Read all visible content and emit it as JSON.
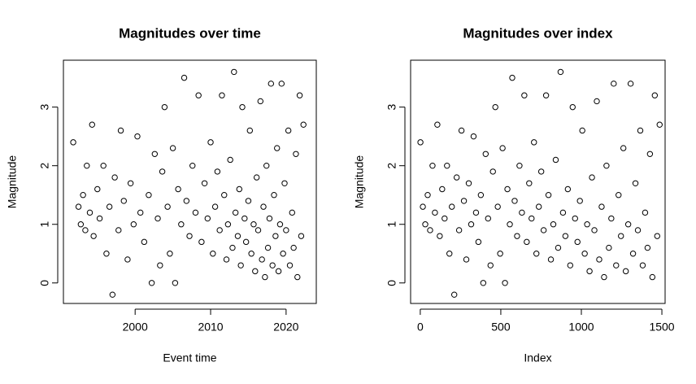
{
  "chart_data": [
    {
      "type": "scatter",
      "title": "Magnitudes over time",
      "x_label": "Event time",
      "y_label": "Magnitude",
      "color": "#000000",
      "x": [
        1991.8,
        1992.5,
        1992.8,
        1993.1,
        1993.4,
        1993.6,
        1994.0,
        1994.3,
        1994.5,
        1995.0,
        1995.3,
        1995.8,
        1996.2,
        1996.6,
        1997.0,
        1997.3,
        1997.8,
        1998.1,
        1998.5,
        1999.0,
        1999.4,
        1999.8,
        2000.3,
        2000.7,
        2001.2,
        2001.8,
        2002.2,
        2002.6,
        2003.0,
        2003.3,
        2003.6,
        2003.9,
        2004.3,
        2004.6,
        2005.0,
        2005.3,
        2005.7,
        2006.1,
        2006.5,
        2006.8,
        2007.2,
        2007.6,
        2008.0,
        2008.4,
        2008.8,
        2009.2,
        2009.6,
        2010.0,
        2010.3,
        2010.6,
        2010.9,
        2011.2,
        2011.5,
        2011.8,
        2012.1,
        2012.3,
        2012.6,
        2012.9,
        2013.1,
        2013.3,
        2013.6,
        2013.8,
        2014.0,
        2014.2,
        2014.5,
        2014.7,
        2015.0,
        2015.2,
        2015.4,
        2015.7,
        2015.9,
        2016.1,
        2016.3,
        2016.6,
        2016.8,
        2017.0,
        2017.2,
        2017.4,
        2017.6,
        2017.8,
        2018.0,
        2018.2,
        2018.4,
        2018.6,
        2018.8,
        2019.0,
        2019.2,
        2019.4,
        2019.6,
        2019.8,
        2020.0,
        2020.3,
        2020.5,
        2020.8,
        2021.0,
        2021.3,
        2021.5,
        2021.8,
        2022.0,
        2022.3
      ],
      "values": [
        2.4,
        1.3,
        1.0,
        1.5,
        0.9,
        2.0,
        1.2,
        2.7,
        0.8,
        1.6,
        1.1,
        2.0,
        0.5,
        1.3,
        -0.2,
        1.8,
        0.9,
        2.6,
        1.4,
        0.4,
        1.7,
        1.0,
        2.5,
        1.2,
        0.7,
        1.5,
        0.0,
        2.2,
        1.1,
        0.3,
        1.9,
        3.0,
        1.3,
        0.5,
        2.3,
        0.0,
        1.6,
        1.0,
        3.5,
        1.4,
        0.8,
        2.0,
        1.2,
        3.2,
        0.7,
        1.7,
        1.1,
        2.4,
        0.5,
        1.3,
        1.9,
        0.9,
        3.2,
        1.5,
        0.4,
        1.0,
        2.1,
        0.6,
        3.6,
        1.2,
        0.8,
        1.6,
        0.3,
        3.0,
        1.1,
        0.7,
        1.4,
        2.6,
        0.5,
        1.0,
        0.2,
        1.8,
        0.9,
        3.1,
        0.4,
        1.3,
        0.1,
        2.0,
        0.6,
        1.1,
        3.4,
        0.3,
        1.5,
        0.8,
        2.3,
        0.2,
        1.0,
        3.4,
        0.5,
        1.7,
        0.9,
        2.6,
        0.3,
        1.2,
        0.6,
        2.2,
        0.1,
        3.2,
        0.8,
        2.7
      ],
      "xlim": [
        1990.5,
        2024
      ],
      "ylim": [
        -0.35,
        3.8
      ],
      "xticks": [
        2000,
        2010,
        2020
      ],
      "yticks": [
        0,
        1,
        2,
        3
      ]
    },
    {
      "type": "scatter",
      "title": "Magnitudes over index",
      "x_label": "Index",
      "y_label": "Magnitude",
      "color": "#000000",
      "x": [
        1,
        16,
        31,
        46,
        61,
        76,
        91,
        106,
        121,
        136,
        151,
        166,
        181,
        196,
        211,
        226,
        241,
        256,
        271,
        286,
        301,
        316,
        331,
        346,
        361,
        376,
        391,
        406,
        421,
        436,
        451,
        466,
        481,
        496,
        511,
        526,
        541,
        556,
        571,
        586,
        601,
        616,
        631,
        646,
        661,
        676,
        691,
        706,
        721,
        736,
        751,
        766,
        781,
        796,
        811,
        826,
        841,
        856,
        871,
        886,
        901,
        916,
        931,
        946,
        961,
        976,
        991,
        1006,
        1021,
        1036,
        1051,
        1066,
        1081,
        1096,
        1111,
        1126,
        1141,
        1156,
        1171,
        1186,
        1201,
        1216,
        1231,
        1246,
        1261,
        1276,
        1291,
        1306,
        1321,
        1336,
        1351,
        1366,
        1381,
        1396,
        1411,
        1426,
        1441,
        1456,
        1471,
        1486
      ],
      "values": [
        2.4,
        1.3,
        1.0,
        1.5,
        0.9,
        2.0,
        1.2,
        2.7,
        0.8,
        1.6,
        1.1,
        2.0,
        0.5,
        1.3,
        -0.2,
        1.8,
        0.9,
        2.6,
        1.4,
        0.4,
        1.7,
        1.0,
        2.5,
        1.2,
        0.7,
        1.5,
        0.0,
        2.2,
        1.1,
        0.3,
        1.9,
        3.0,
        1.3,
        0.5,
        2.3,
        0.0,
        1.6,
        1.0,
        3.5,
        1.4,
        0.8,
        2.0,
        1.2,
        3.2,
        0.7,
        1.7,
        1.1,
        2.4,
        0.5,
        1.3,
        1.9,
        0.9,
        3.2,
        1.5,
        0.4,
        1.0,
        2.1,
        0.6,
        3.6,
        1.2,
        0.8,
        1.6,
        0.3,
        3.0,
        1.1,
        0.7,
        1.4,
        2.6,
        0.5,
        1.0,
        0.2,
        1.8,
        0.9,
        3.1,
        0.4,
        1.3,
        0.1,
        2.0,
        0.6,
        1.1,
        3.4,
        0.3,
        1.5,
        0.8,
        2.3,
        0.2,
        1.0,
        3.4,
        0.5,
        1.7,
        0.9,
        2.6,
        0.3,
        1.2,
        0.6,
        2.2,
        0.1,
        3.2,
        0.8,
        2.7
      ],
      "xlim": [
        -60,
        1520
      ],
      "ylim": [
        -0.35,
        3.8
      ],
      "xticks": [
        0,
        500,
        1000,
        1500
      ],
      "yticks": [
        0,
        1,
        2,
        3
      ]
    }
  ]
}
